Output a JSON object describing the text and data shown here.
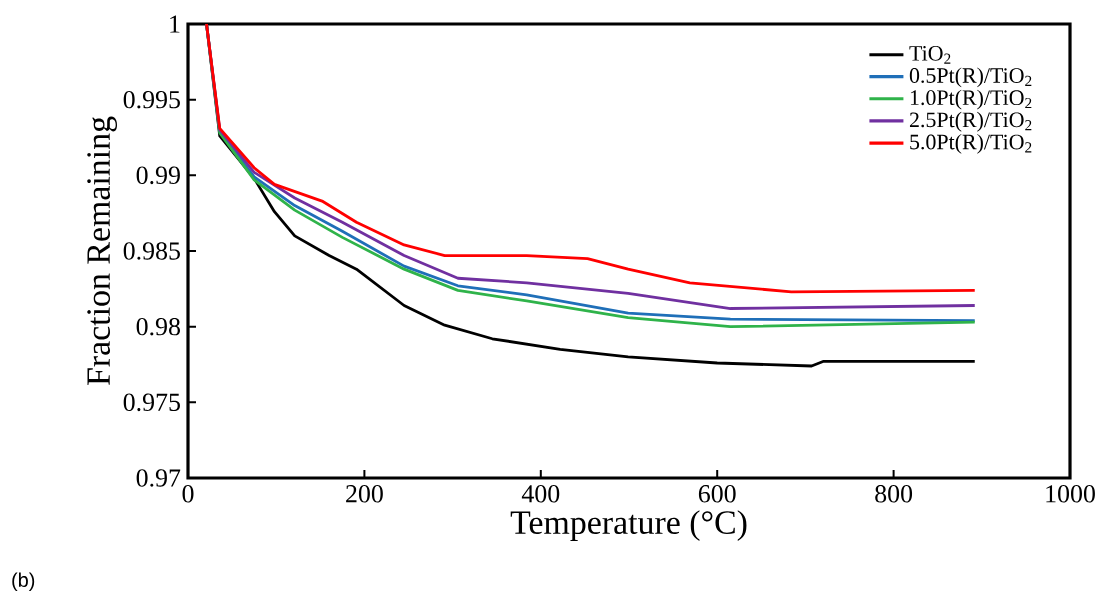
{
  "chart_data": {
    "type": "line",
    "xlabel": "Temperature (°C)",
    "ylabel": "Fraction Remaining",
    "xlim": [
      0,
      1000
    ],
    "ylim": [
      0.97,
      1
    ],
    "xticks": [
      0,
      200,
      400,
      600,
      800,
      1000
    ],
    "yticks": [
      0.97,
      0.975,
      0.98,
      0.985,
      0.99,
      0.995,
      1
    ],
    "legend": "top right",
    "grid": false,
    "line_style": "solid",
    "marker": "none",
    "annotations": [
      "(b)"
    ],
    "series": [
      {
        "name": "TiO$_{2}$",
        "color": "#000000",
        "x": [
          21,
          36,
          75,
          98,
          121,
          160,
          191,
          245,
          291,
          345,
          422,
          499,
          600,
          707,
          720,
          892
        ],
        "values": [
          1,
          0.9926,
          0.9898,
          0.9876,
          0.986,
          0.9847,
          0.9838,
          0.9814,
          0.9801,
          0.9792,
          0.9785,
          0.978,
          0.9776,
          0.9774,
          0.9777,
          0.9777
        ]
      },
      {
        "name": "0.5Pt(R)/TiO$_{2}$",
        "color": "#1f6fb8",
        "x": [
          21,
          36,
          75,
          121,
          175,
          245,
          306,
          384,
          499,
          615,
          892
        ],
        "values": [
          1,
          0.9929,
          0.9899,
          0.988,
          0.9863,
          0.984,
          0.9827,
          0.9821,
          0.9809,
          0.9805,
          0.9804
        ]
      },
      {
        "name": "1.0Pt(R)/TiO$_{2}$",
        "color": "#2fb34a",
        "x": [
          21,
          36,
          75,
          121,
          175,
          245,
          306,
          384,
          499,
          615,
          892
        ],
        "values": [
          1,
          0.9928,
          0.9897,
          0.9877,
          0.9859,
          0.9838,
          0.9824,
          0.9817,
          0.9806,
          0.98,
          0.9803
        ]
      },
      {
        "name": "2.5Pt(R)/TiO$_{2}$",
        "color": "#7030a0",
        "x": [
          21,
          36,
          75,
          121,
          175,
          245,
          306,
          384,
          499,
          615,
          892
        ],
        "values": [
          1,
          0.993,
          0.9902,
          0.9885,
          0.9869,
          0.9847,
          0.9832,
          0.9829,
          0.9822,
          0.9812,
          0.9814
        ]
      },
      {
        "name": "5.0Pt(R)/TiO$_{2}$",
        "color": "#ff0000",
        "x": [
          21,
          36,
          75,
          98,
          152,
          191,
          245,
          291,
          384,
          453,
          499,
          569,
          684,
          892
        ],
        "values": [
          1,
          0.9931,
          0.9905,
          0.9894,
          0.9883,
          0.9869,
          0.9854,
          0.9847,
          0.9847,
          0.9845,
          0.9838,
          0.9829,
          0.9823,
          0.9824
        ]
      }
    ]
  }
}
